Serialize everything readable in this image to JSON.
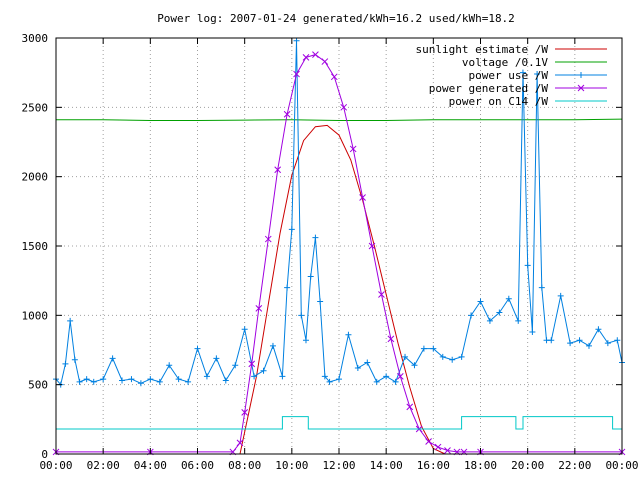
{
  "chart_data": {
    "type": "line",
    "title": "Power log: 2007-01-24 generated/kWh=16.2 used/kWh=18.2",
    "xlabel": "",
    "ylabel": "",
    "xlim": [
      "00:00",
      "24:00"
    ],
    "ylim": [
      0,
      3000
    ],
    "x_ticks": [
      "00:00",
      "02:00",
      "04:00",
      "06:00",
      "08:00",
      "10:00",
      "12:00",
      "14:00",
      "16:00",
      "18:00",
      "20:00",
      "22:00",
      "00:00"
    ],
    "y_ticks": [
      "0",
      "500",
      "1000",
      "1500",
      "2000",
      "2500",
      "3000"
    ],
    "grid": true,
    "legend_position": "top-right",
    "series": [
      {
        "name": "sunlight estimate /W",
        "color": "#cc0000",
        "marker": "none",
        "x": [
          7.8,
          8.5,
          9.0,
          9.5,
          10.0,
          10.5,
          11.0,
          11.5,
          12.0,
          12.5,
          13.0,
          13.5,
          14.0,
          14.5,
          15.0,
          15.5,
          16.0,
          16.5
        ],
        "y": [
          0,
          560,
          1080,
          1590,
          2010,
          2260,
          2360,
          2370,
          2300,
          2120,
          1830,
          1500,
          1150,
          800,
          480,
          200,
          40,
          0
        ]
      },
      {
        "name": "voltage /0.1V",
        "color": "#00a000",
        "marker": "none",
        "x": [
          0,
          2,
          4,
          6,
          8,
          10,
          12,
          14,
          16,
          18,
          20,
          22,
          24
        ],
        "y": [
          2410,
          2410,
          2405,
          2405,
          2408,
          2410,
          2405,
          2405,
          2410,
          2410,
          2410,
          2410,
          2415
        ]
      },
      {
        "name": "power use /W",
        "color": "#0080e0",
        "marker": "plus",
        "x": [
          0.0,
          0.2,
          0.4,
          0.6,
          0.8,
          1.0,
          1.3,
          1.6,
          2.0,
          2.4,
          2.8,
          3.2,
          3.6,
          4.0,
          4.4,
          4.8,
          5.2,
          5.6,
          6.0,
          6.4,
          6.8,
          7.2,
          7.6,
          8.0,
          8.4,
          8.8,
          9.2,
          9.6,
          9.8,
          10.0,
          10.2,
          10.4,
          10.6,
          10.8,
          11.0,
          11.2,
          11.4,
          11.6,
          12.0,
          12.4,
          12.8,
          13.2,
          13.6,
          14.0,
          14.4,
          14.8,
          15.2,
          15.6,
          16.0,
          16.4,
          16.8,
          17.2,
          17.6,
          18.0,
          18.4,
          18.8,
          19.2,
          19.6,
          19.8,
          20.0,
          20.2,
          20.4,
          20.6,
          20.8,
          21.0,
          21.4,
          21.8,
          22.2,
          22.6,
          23.0,
          23.4,
          23.8,
          24.0
        ],
        "y": [
          540,
          500,
          650,
          960,
          680,
          520,
          540,
          520,
          540,
          690,
          530,
          540,
          510,
          540,
          520,
          640,
          540,
          520,
          760,
          560,
          690,
          530,
          640,
          900,
          560,
          600,
          780,
          560,
          1200,
          1620,
          2980,
          1000,
          820,
          1280,
          1560,
          1100,
          560,
          520,
          540,
          860,
          620,
          660,
          520,
          560,
          520,
          700,
          640,
          760,
          760,
          700,
          680,
          700,
          1000,
          1100,
          960,
          1020,
          1120,
          960,
          2750,
          1360,
          880,
          2740,
          1200,
          820,
          820,
          1140,
          800,
          820,
          780,
          900,
          800,
          820,
          660
        ]
      },
      {
        "name": "power generated /W",
        "color": "#a000e0",
        "marker": "cross",
        "x": [
          0,
          4,
          7.5,
          7.8,
          8.0,
          8.3,
          8.6,
          9.0,
          9.4,
          9.8,
          10.2,
          10.6,
          11.0,
          11.4,
          11.8,
          12.2,
          12.6,
          13.0,
          13.4,
          13.8,
          14.2,
          14.6,
          15.0,
          15.4,
          15.8,
          16.2,
          16.6,
          17.0,
          17.3,
          18,
          24
        ],
        "y": [
          15,
          15,
          15,
          80,
          300,
          650,
          1050,
          1550,
          2050,
          2450,
          2740,
          2860,
          2880,
          2830,
          2720,
          2500,
          2200,
          1850,
          1500,
          1150,
          830,
          560,
          340,
          180,
          90,
          50,
          25,
          15,
          15,
          15,
          15
        ]
      },
      {
        "name": "power on C14 /W",
        "color": "#00c8c8",
        "marker": "none",
        "x": [
          0,
          9.6,
          9.6,
          10.7,
          10.7,
          17.2,
          17.2,
          19.5,
          19.5,
          19.8,
          19.8,
          23.6,
          23.6,
          24
        ],
        "y": [
          180,
          180,
          270,
          270,
          180,
          180,
          270,
          270,
          180,
          180,
          270,
          270,
          180,
          180
        ]
      }
    ]
  }
}
